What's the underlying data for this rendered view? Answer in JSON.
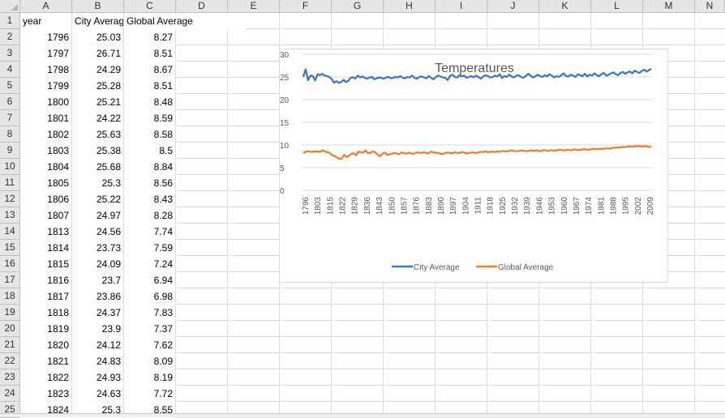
{
  "columns": [
    "A",
    "B",
    "C",
    "D",
    "E",
    "F",
    "G",
    "H",
    "I",
    "J",
    "K",
    "L",
    "M",
    "N"
  ],
  "row_numbers": [
    "1",
    "2",
    "3",
    "4",
    "5",
    "6",
    "7",
    "8",
    "9",
    "10",
    "11",
    "12",
    "13",
    "14",
    "15",
    "16",
    "17",
    "18",
    "19",
    "20",
    "21",
    "22",
    "23",
    "24",
    "25"
  ],
  "header_row": {
    "a": "year",
    "b": "City Average",
    "c": "Global Average"
  },
  "rows": [
    {
      "year": "1796",
      "city": "25.03",
      "global": "8.27"
    },
    {
      "year": "1797",
      "city": "26.71",
      "global": "8.51"
    },
    {
      "year": "1798",
      "city": "24.29",
      "global": "8.67"
    },
    {
      "year": "1799",
      "city": "25.28",
      "global": "8.51"
    },
    {
      "year": "1800",
      "city": "25.21",
      "global": "8.48"
    },
    {
      "year": "1801",
      "city": "24.22",
      "global": "8.59"
    },
    {
      "year": "1802",
      "city": "25.63",
      "global": "8.58"
    },
    {
      "year": "1803",
      "city": "25.38",
      "global": "8.5"
    },
    {
      "year": "1804",
      "city": "25.68",
      "global": "8.84"
    },
    {
      "year": "1805",
      "city": "25.3",
      "global": "8.56"
    },
    {
      "year": "1806",
      "city": "25.22",
      "global": "8.43"
    },
    {
      "year": "1807",
      "city": "24.97",
      "global": "8.28"
    },
    {
      "year": "1813",
      "city": "24.56",
      "global": "7.74"
    },
    {
      "year": "1814",
      "city": "23.73",
      "global": "7.59"
    },
    {
      "year": "1815",
      "city": "24.09",
      "global": "7.24"
    },
    {
      "year": "1816",
      "city": "23.7",
      "global": "6.94"
    },
    {
      "year": "1817",
      "city": "23.86",
      "global": "6.98"
    },
    {
      "year": "1818",
      "city": "24.37",
      "global": "7.83"
    },
    {
      "year": "1819",
      "city": "23.9",
      "global": "7.37"
    },
    {
      "year": "1820",
      "city": "24.12",
      "global": "7.62"
    },
    {
      "year": "1821",
      "city": "24.83",
      "global": "8.09"
    },
    {
      "year": "1822",
      "city": "24.93",
      "global": "8.19"
    },
    {
      "year": "1823",
      "city": "24.63",
      "global": "7.72"
    },
    {
      "year": "1824",
      "city": "25.3",
      "global": "8.55"
    }
  ],
  "chart_data": {
    "type": "line",
    "title": "Temperatures",
    "xlabel": "",
    "ylabel": "",
    "ylim": [
      0,
      30
    ],
    "yticks": [
      "0",
      "5",
      "10",
      "15",
      "20",
      "25",
      "30"
    ],
    "xtick_labels": [
      "1796",
      "1803",
      "1815",
      "1822",
      "1829",
      "1836",
      "1843",
      "1850",
      "1857",
      "1876",
      "1883",
      "1890",
      "1897",
      "1904",
      "1911",
      "1918",
      "1925",
      "1932",
      "1939",
      "1946",
      "1953",
      "1960",
      "1967",
      "1974",
      "1981",
      "1988",
      "1995",
      "2002",
      "2009"
    ],
    "series": [
      {
        "name": "City Average",
        "color": "#4472c4",
        "values": [
          25.03,
          26.71,
          24.29,
          25.28,
          25.21,
          24.22,
          25.63,
          25.38,
          25.68,
          25.3,
          25.22,
          24.97,
          24.56,
          23.73,
          24.09,
          23.7,
          23.86,
          24.37,
          23.9,
          24.12,
          24.83,
          24.93,
          24.63,
          25.3,
          24.9,
          25.1,
          24.8,
          24.6,
          24.9,
          25.0,
          24.5,
          24.7,
          24.9,
          24.8,
          24.6,
          24.9,
          25.0,
          24.7,
          24.8,
          25.0,
          24.9,
          25.2,
          24.8,
          24.7,
          25.0,
          24.9,
          25.3,
          24.8,
          24.6,
          25.0,
          25.1,
          24.9,
          24.7,
          25.2,
          24.8,
          24.5,
          25.0,
          25.3,
          25.1,
          24.9,
          24.8,
          24.3,
          25.2,
          25.5,
          25.0,
          24.9,
          25.4,
          25.1,
          25.3,
          24.8,
          25.0,
          25.2,
          24.9,
          25.3,
          25.0,
          24.6,
          25.1,
          25.4,
          25.2,
          24.9,
          25.0,
          25.3,
          25.1,
          25.6,
          24.8,
          25.2,
          25.0,
          25.5,
          25.1,
          24.9,
          25.3,
          25.4,
          25.0,
          24.8,
          25.2,
          25.7,
          25.3,
          24.9,
          25.1,
          25.5,
          25.2,
          25.0,
          25.4,
          25.1,
          25.6,
          25.3,
          24.9,
          25.2,
          25.0,
          25.4,
          25.8,
          25.2,
          25.1,
          25.5,
          25.3,
          25.0,
          25.6,
          25.4,
          25.2,
          25.7,
          25.1,
          25.5,
          25.3,
          25.8,
          25.4,
          25.2,
          25.6,
          25.9,
          25.3,
          25.5,
          25.8,
          26.0,
          25.6,
          25.4,
          25.9,
          26.1,
          25.7,
          26.0,
          26.2,
          25.8,
          26.4,
          26.1,
          25.9,
          26.3,
          26.6,
          26.2,
          26.5,
          26.8
        ]
      },
      {
        "name": "Global Average",
        "color": "#ed7d31",
        "values": [
          8.27,
          8.51,
          8.67,
          8.51,
          8.48,
          8.59,
          8.58,
          8.5,
          8.84,
          8.56,
          8.43,
          8.28,
          7.74,
          7.59,
          7.24,
          6.94,
          6.98,
          7.83,
          7.37,
          7.62,
          8.09,
          8.19,
          7.72,
          8.55,
          8.39,
          8.36,
          8.81,
          8.17,
          8.3,
          8.59,
          8.38,
          7.84,
          7.56,
          8.1,
          8.34,
          7.8,
          7.95,
          8.1,
          8.25,
          8.1,
          8.0,
          8.4,
          8.2,
          8.1,
          8.3,
          8.15,
          8.05,
          8.3,
          8.35,
          8.2,
          8.4,
          8.3,
          8.1,
          8.5,
          8.45,
          8.25,
          8.3,
          8.1,
          8.0,
          8.2,
          8.35,
          8.25,
          8.15,
          8.4,
          8.3,
          8.2,
          8.45,
          8.35,
          8.1,
          8.25,
          8.3,
          8.4,
          8.2,
          8.35,
          8.5,
          8.45,
          8.6,
          8.4,
          8.5,
          8.55,
          8.45,
          8.6,
          8.5,
          8.7,
          8.65,
          8.55,
          8.75,
          8.8,
          8.7,
          8.6,
          8.7,
          8.8,
          8.75,
          8.65,
          8.7,
          8.85,
          8.7,
          8.8,
          8.75,
          8.6,
          8.9,
          8.8,
          8.7,
          8.85,
          8.8,
          8.75,
          8.9,
          8.95,
          8.85,
          8.8,
          9.0,
          8.9,
          8.85,
          9.05,
          8.95,
          8.9,
          9.0,
          9.1,
          9.0,
          8.95,
          9.1,
          9.2,
          9.05,
          9.15,
          9.2,
          9.1,
          9.3,
          9.25,
          9.2,
          9.4,
          9.35,
          9.5,
          9.45,
          9.6,
          9.55,
          9.65,
          9.7,
          9.6,
          9.75,
          9.7,
          9.8,
          9.65,
          9.75,
          9.7,
          9.6,
          9.55
        ]
      }
    ],
    "grid": true,
    "legend_position": "bottom"
  }
}
